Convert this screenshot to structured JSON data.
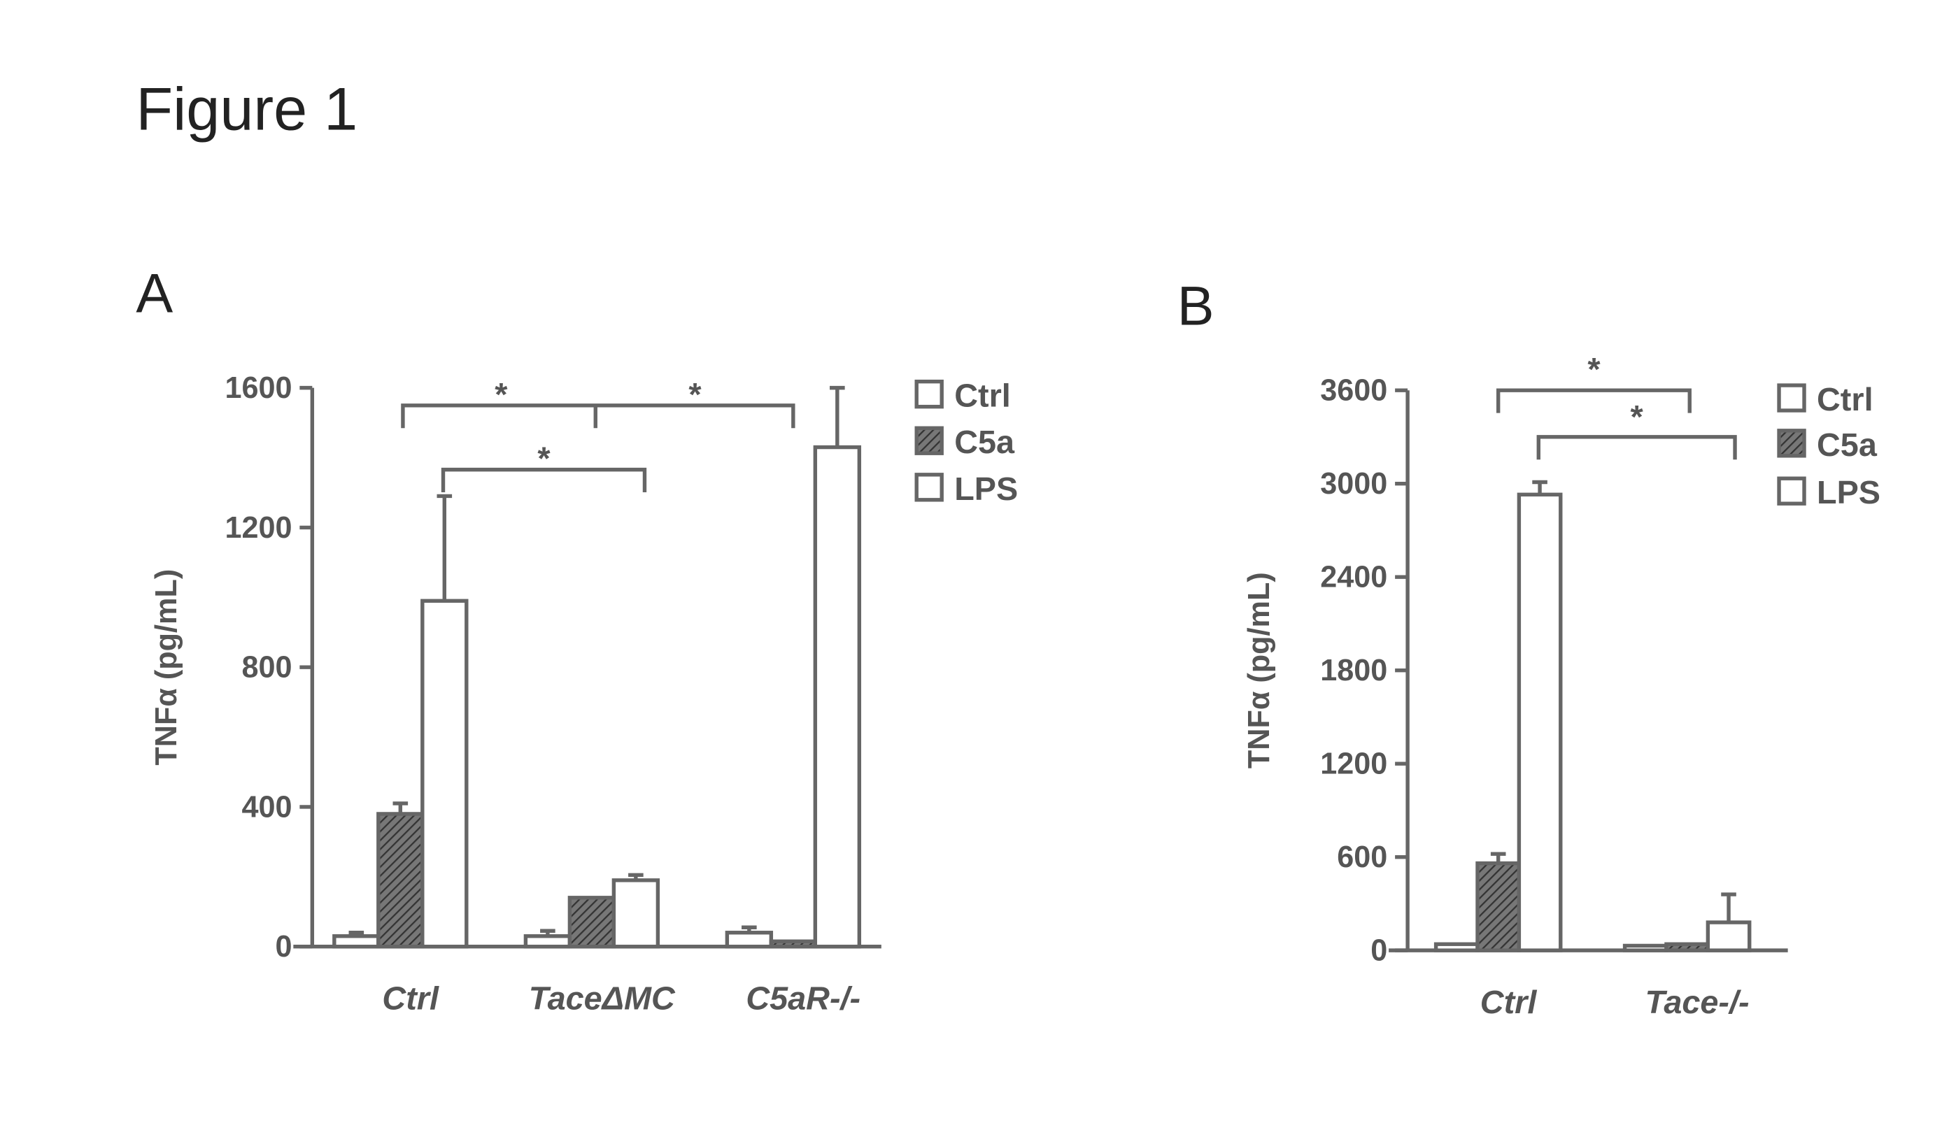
{
  "title": "Figure 1",
  "chart_data": [
    {
      "type": "bar",
      "panel_label": "A",
      "ylabel": "TNFα (pg/mL)",
      "categories": [
        "Ctrl",
        "TaceΔMC",
        "C5aR-/-"
      ],
      "series": [
        {
          "name": "Ctrl",
          "color": "#ffffff",
          "values": [
            30,
            30,
            40
          ],
          "errors": [
            10,
            15,
            15
          ]
        },
        {
          "name": "C5a",
          "color": "#555555",
          "values": [
            380,
            140,
            15
          ],
          "errors": [
            30,
            0,
            0
          ]
        },
        {
          "name": "LPS",
          "color": "#ffffff",
          "values": [
            990,
            190,
            1430
          ],
          "errors": [
            300,
            15,
            170
          ]
        }
      ],
      "ylim": [
        0,
        1600
      ],
      "yticks": [
        0,
        400,
        800,
        1200,
        1600
      ],
      "annotations": [
        "*",
        "*",
        "*"
      ]
    },
    {
      "type": "bar",
      "panel_label": "B",
      "ylabel": "TNFα (pg/mL)",
      "categories": [
        "Ctrl",
        "Tace-/-"
      ],
      "series": [
        {
          "name": "Ctrl",
          "color": "#ffffff",
          "values": [
            40,
            30
          ],
          "errors": [
            0,
            0
          ]
        },
        {
          "name": "C5a",
          "color": "#555555",
          "values": [
            560,
            40
          ],
          "errors": [
            60,
            0
          ]
        },
        {
          "name": "LPS",
          "color": "#ffffff",
          "values": [
            2930,
            180
          ],
          "errors": [
            80,
            180
          ]
        }
      ],
      "ylim": [
        0,
        3600
      ],
      "yticks": [
        0,
        600,
        1200,
        1800,
        2400,
        3000,
        3600
      ],
      "annotations": [
        "*",
        "*"
      ]
    }
  ]
}
